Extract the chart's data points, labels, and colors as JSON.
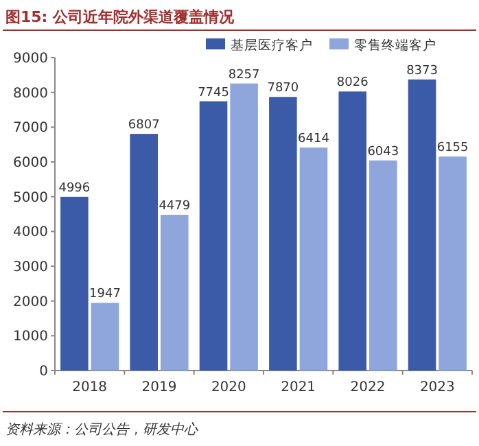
{
  "chart_data": {
    "type": "bar",
    "title": "图15: 公司近年院外渠道覆盖情况",
    "categories": [
      "2018",
      "2019",
      "2020",
      "2021",
      "2022",
      "2023"
    ],
    "series": [
      {
        "name": "基层医疗客户",
        "color": "#3b5aa8",
        "values": [
          4996,
          6807,
          7745,
          7870,
          8026,
          8373
        ]
      },
      {
        "name": "零售终端客户",
        "color": "#8ea6dc",
        "values": [
          1947,
          4479,
          8257,
          6414,
          6043,
          6155
        ]
      }
    ],
    "ylim": [
      0,
      9000
    ],
    "yticks": [
      0,
      1000,
      2000,
      3000,
      4000,
      5000,
      6000,
      7000,
      8000,
      9000
    ],
    "data_labels": true,
    "legend": "top",
    "grid": false,
    "annotations": [
      "资料来源：公司公告，研发中心"
    ]
  }
}
